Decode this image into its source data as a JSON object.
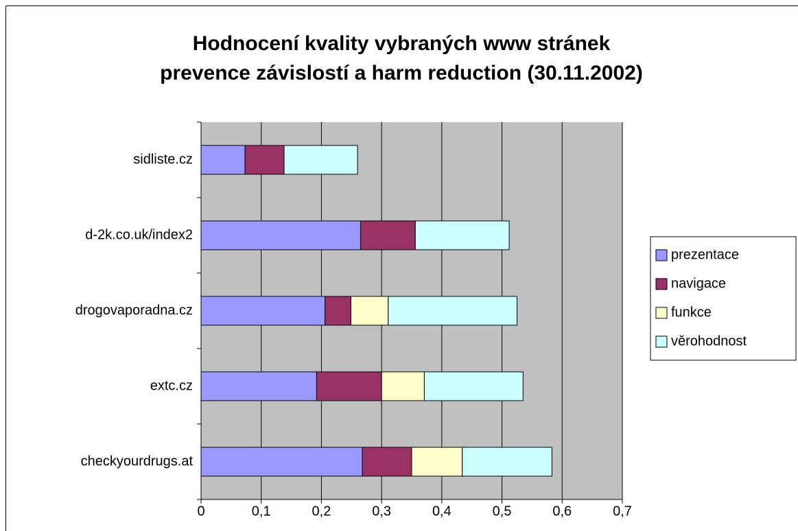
{
  "chart_data": {
    "type": "stacked-barh",
    "title": [
      "Hodnocení kvality vybraných www stránek",
      "prevence závislostí a harm reduction (30.11.2002)"
    ],
    "categories": [
      "sidliste.cz",
      "d-2k.co.uk/index2",
      "drogovaporadna.cz",
      "extc.cz",
      "checkyourdrugs.at"
    ],
    "series": [
      {
        "name": "prezentace",
        "color": "#9999ff",
        "values": [
          0.073,
          0.265,
          0.206,
          0.192,
          0.268
        ]
      },
      {
        "name": "navigace",
        "color": "#993366",
        "values": [
          0.065,
          0.091,
          0.043,
          0.108,
          0.082
        ]
      },
      {
        "name": "funkce",
        "color": "#ffffcc",
        "values": [
          0,
          0,
          0.062,
          0.071,
          0.084
        ]
      },
      {
        "name": "věrohodnost",
        "color": "#ccffff",
        "values": [
          0.122,
          0.156,
          0.214,
          0.164,
          0.149
        ]
      }
    ],
    "xlim": [
      0,
      0.7
    ],
    "xticks": [
      0,
      {
        "value": 0.1,
        "label": "0,1"
      },
      {
        "value": 0.2,
        "label": "0,2"
      },
      {
        "value": 0.3,
        "label": "0,3"
      },
      {
        "value": 0.4,
        "label": "0,4"
      },
      {
        "value": 0.5,
        "label": "0,5"
      },
      {
        "value": 0.6,
        "label": "0,6"
      },
      {
        "value": 0.7,
        "label": "0,7"
      }
    ],
    "grid": true,
    "legend": "right"
  }
}
